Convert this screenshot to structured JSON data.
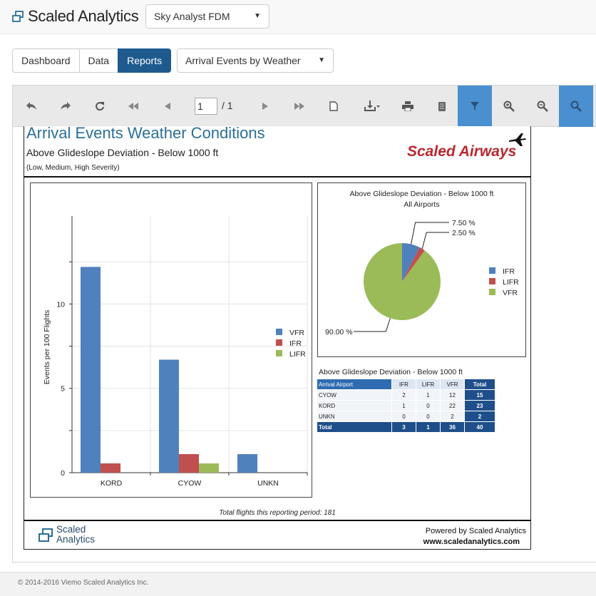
{
  "app": {
    "brand": "Scaled Analytics",
    "product_select": "Sky Analyst FDM"
  },
  "nav": {
    "tabs": [
      {
        "label": "Dashboard"
      },
      {
        "label": "Data"
      },
      {
        "label": "Reports"
      }
    ],
    "active_tab": "Reports",
    "report_select": "Arrival Events by Weather"
  },
  "toolbar": {
    "page_current": "1",
    "page_total": "/ 1",
    "buttons": [
      "undo-icon",
      "redo-icon",
      "refresh-icon",
      "first-page-icon",
      "prev-page-icon",
      "next-page-icon",
      "last-page-icon",
      "document-icon",
      "download-icon",
      "print-icon",
      "copy-icon",
      "filter-icon",
      "zoom-in-icon",
      "zoom-out-icon",
      "search-icon"
    ]
  },
  "report": {
    "title": "Arrival Events Weather Conditions",
    "subtitle": "Above Glideslope Deviation - Below 1000 ft",
    "severity": "(Low, Medium, High Severity)",
    "airline_logo_text": "Scaled Airways",
    "flights_note": "Total flights this reporting period: 181",
    "footer_logo_line1": "Scaled",
    "footer_logo_line2": "Analytics",
    "powered_by": "Powered by Scaled Analytics",
    "website": "www.scaledanalytics.com"
  },
  "chart_data": [
    {
      "type": "bar",
      "categories": [
        "KORD",
        "CYOW",
        "UNKN"
      ],
      "series": [
        {
          "name": "VFR",
          "values": [
            12.2,
            6.7,
            1.1
          ],
          "color": "#4f81bd"
        },
        {
          "name": "IFR",
          "values": [
            0.55,
            1.1,
            0
          ],
          "color": "#c0504d"
        },
        {
          "name": "LIFR",
          "values": [
            0,
            0.55,
            0
          ],
          "color": "#9bbb59"
        }
      ],
      "ylabel": "Events per 100 Flights",
      "ylim": [
        0,
        14
      ],
      "yticks": [
        "0",
        "5",
        "10"
      ],
      "grid": true,
      "legend": "right"
    },
    {
      "type": "pie",
      "title": "Above Glideslope Deviation - Below 1000 ft",
      "subtitle": "All Airports",
      "slices": [
        {
          "name": "IFR",
          "value": 7.5,
          "label": "7.50 %",
          "color": "#4f81bd"
        },
        {
          "name": "LIFR",
          "value": 2.5,
          "label": "2.50 %",
          "color": "#c0504d"
        },
        {
          "name": "VFR",
          "value": 90.0,
          "label": "90.00 %",
          "color": "#9bbb59"
        }
      ],
      "legend": "right"
    },
    {
      "type": "table",
      "title": "Above Glideslope Deviation - Below 1000 ft",
      "columns": [
        "Arrival Airport",
        "IFR",
        "LIFR",
        "VFR",
        "Total"
      ],
      "rows": [
        [
          "CYOW",
          "2",
          "1",
          "12",
          "15"
        ],
        [
          "KORD",
          "1",
          "0",
          "22",
          "23"
        ],
        [
          "UNKN",
          "0",
          "0",
          "2",
          "2"
        ]
      ],
      "total_row": [
        "Total",
        "3",
        "1",
        "36",
        "40"
      ]
    }
  ],
  "footer": {
    "copyright": "© 2014-2016 Viemo Scaled Analytics Inc."
  }
}
